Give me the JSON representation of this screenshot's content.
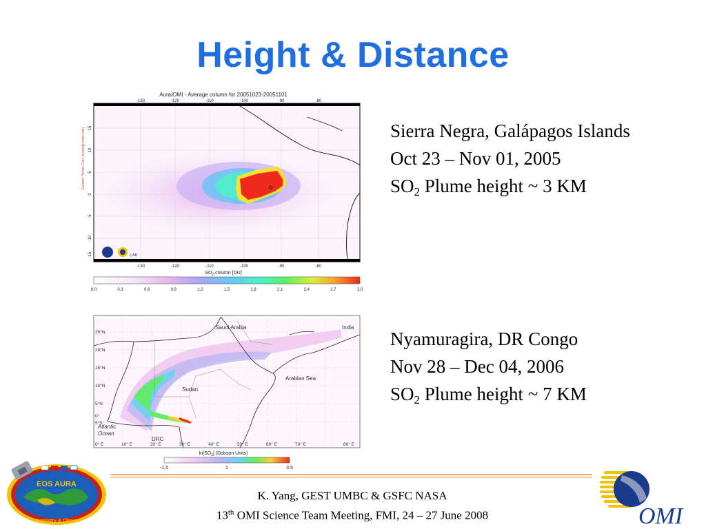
{
  "slide": {
    "title": "Height & Distance"
  },
  "map1": {
    "header": "Aura/OMI - Average column for 20051023-20051101",
    "side_label": "Contact: Simon Carn (scarn@umbc.edu)",
    "lon_ticks": [
      "-130",
      "-120",
      "-110",
      "-100",
      "-90",
      "-80"
    ],
    "lat_ticks": [
      "15",
      "10",
      "5",
      "0",
      "-5",
      "-10",
      "-15"
    ],
    "colorbar_label": "SO",
    "colorbar_label_sub": "2",
    "colorbar_label_tail": " column [DU]",
    "colorbar_ticks": [
      "0.0",
      "0.3",
      "0.6",
      "0.9",
      "1.2",
      "1.5",
      "1.8",
      "2.1",
      "2.4",
      "2.7",
      "3.0"
    ],
    "omi_badge": "OMI"
  },
  "caption1": {
    "line1": "Sierra Negra, Galápagos Islands",
    "line2": "Oct 23 – Nov 01, 2005",
    "line3_pre": "SO",
    "line3_sub": "2",
    "line3_post": " Plume height ~ 3 KM"
  },
  "map2": {
    "labels": {
      "saudi": "Saudi Arabia",
      "india": "India",
      "arabian_sea": "Arabian Sea",
      "sudan": "Sudan",
      "atlantic1": "Atlantic",
      "atlantic2": "Ocean",
      "drc": "DRC"
    },
    "lat_ticks": [
      "25°N",
      "20°N",
      "15°N",
      "10°N",
      "5°N",
      "0°",
      "5°S"
    ],
    "lon_ticks": [
      "0° E",
      "10° E",
      "20° E",
      "30° E",
      "40° E",
      "50° E",
      "60° E",
      "70° E",
      "80° E"
    ],
    "colorbar_title_pre": "ln[SO",
    "colorbar_title_sub": "2",
    "colorbar_title_post": "] (Dobson Units)",
    "colorbar_ticks": [
      "-1.5",
      "1",
      "3.5"
    ]
  },
  "caption2": {
    "line1": "Nyamuragira, DR Congo",
    "line2": "Nov 28 – Dec 04, 2006",
    "line3_pre": "SO",
    "line3_sub": "2",
    "line3_post": " Plume height ~ 7 KM"
  },
  "footer": {
    "line1": "K. Yang, GEST UMBC  & GSFC NASA",
    "line2_pre": "13",
    "line2_sup": "th",
    "line2_post": " OMI Science Team Meeting, FMI, 24 – 27 June 2008"
  },
  "logos": {
    "eos_text": "EOS AURA",
    "eos_sub": "Chemistry & Climate",
    "omi_text": "OMI"
  }
}
